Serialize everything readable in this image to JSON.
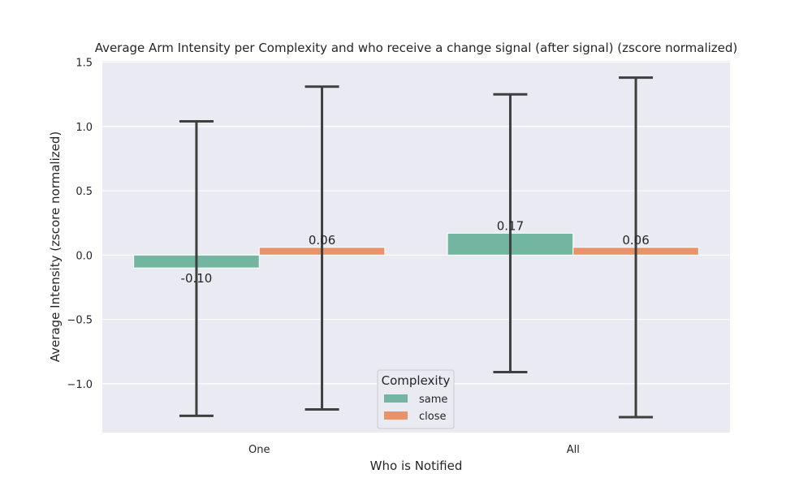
{
  "chart_data": {
    "type": "bar",
    "title": "Average Arm Intensity per Complexity and who receive a change signal (after signal) (zscore normalized)",
    "xlabel": "Who is Notified",
    "ylabel": "Average Intensity (zscore normalized)",
    "categories": [
      "One",
      "All"
    ],
    "ylim": [
      -1.38,
      1.51
    ],
    "yticks": [
      -1.0,
      -0.5,
      0.0,
      0.5,
      1.0,
      1.5
    ],
    "ytick_labels": [
      "−1.0",
      "−0.5",
      "0.0",
      "0.5",
      "1.0",
      "1.5"
    ],
    "grid": true,
    "legend": {
      "title": "Complexity",
      "placement": "bottom-center"
    },
    "series": [
      {
        "name": "same",
        "color": "#72b6a1",
        "values": [
          -0.1,
          0.17
        ],
        "value_labels": [
          "-0.10",
          "0.17"
        ],
        "error_low": [
          -1.25,
          -0.91
        ],
        "error_high": [
          1.04,
          1.25
        ]
      },
      {
        "name": "close",
        "color": "#e9936c",
        "values": [
          0.06,
          0.06
        ],
        "value_labels": [
          "0.06",
          "0.06"
        ],
        "error_low": [
          -1.2,
          -1.26
        ],
        "error_high": [
          1.31,
          1.38
        ]
      }
    ],
    "colors": {
      "background": "#eaeaf2",
      "grid": "#ffffff",
      "errorbar": "#3f3f3f"
    }
  }
}
